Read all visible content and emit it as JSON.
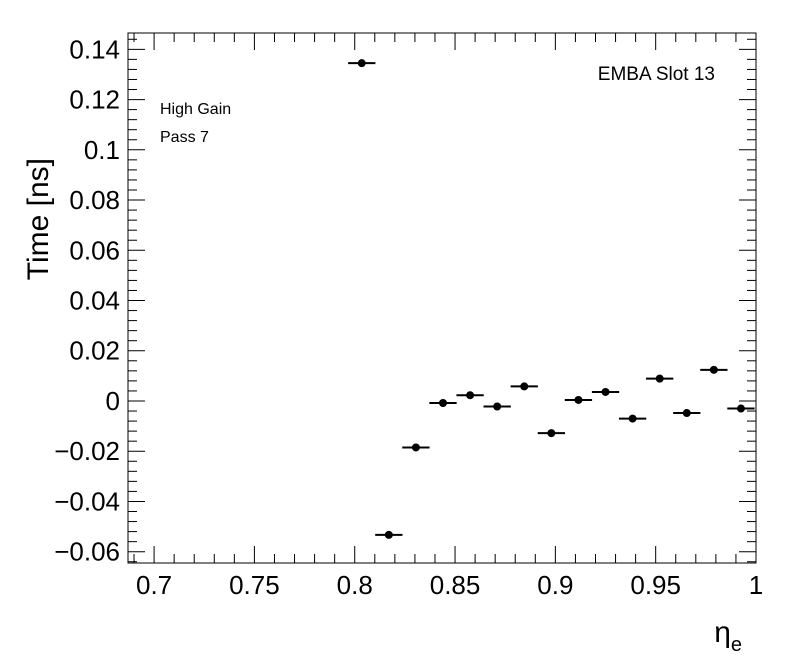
{
  "chart_data": {
    "type": "scatter",
    "title": "",
    "xlabel": "η",
    "xlabel_sub": "e",
    "ylabel": "Time [ns]",
    "xlim": [
      0.687,
      1.0
    ],
    "ylim": [
      -0.0645,
      0.1465
    ],
    "x_ticks": [
      0.7,
      0.75,
      0.8,
      0.85,
      0.9,
      0.95,
      1.0
    ],
    "x_tick_labels": [
      "0.7",
      "0.75",
      "0.8",
      "0.85",
      "0.9",
      "0.95",
      "1"
    ],
    "y_ticks": [
      -0.06,
      -0.04,
      -0.02,
      0,
      0.02,
      0.04,
      0.06,
      0.08,
      0.1,
      0.12,
      0.14
    ],
    "y_tick_labels": [
      "−0.06",
      "−0.04",
      "−0.02",
      "0",
      "0.02",
      "0.04",
      "0.06",
      "0.08",
      "0.1",
      "0.12",
      "0.14"
    ],
    "grid": false,
    "legend": "none",
    "marker_color": "#000000",
    "annotations": {
      "top_right": "EMBA Slot 13",
      "gain": "High Gain",
      "pass": "Pass 7"
    },
    "x_bin_halfwidth": 0.0068,
    "points": [
      {
        "x": 0.8035,
        "y": 0.1345,
        "yerr": 0.0012
      },
      {
        "x": 0.817,
        "y": -0.0533,
        "yerr": 0.0006
      },
      {
        "x": 0.8305,
        "y": -0.0185,
        "yerr": 0.0006
      },
      {
        "x": 0.844,
        "y": -0.0008,
        "yerr": 0.0006
      },
      {
        "x": 0.8575,
        "y": 0.0023,
        "yerr": 0.0006
      },
      {
        "x": 0.871,
        "y": -0.0022,
        "yerr": 0.0006
      },
      {
        "x": 0.8845,
        "y": 0.0058,
        "yerr": 0.0006
      },
      {
        "x": 0.898,
        "y": -0.0128,
        "yerr": 0.0006
      },
      {
        "x": 0.9115,
        "y": 0.0004,
        "yerr": 0.0006
      },
      {
        "x": 0.925,
        "y": 0.0036,
        "yerr": 0.0006
      },
      {
        "x": 0.9385,
        "y": -0.007,
        "yerr": 0.0006
      },
      {
        "x": 0.952,
        "y": 0.0089,
        "yerr": 0.0006
      },
      {
        "x": 0.9655,
        "y": -0.0048,
        "yerr": 0.0006
      },
      {
        "x": 0.979,
        "y": 0.0124,
        "yerr": 0.0006
      },
      {
        "x": 0.9925,
        "y": -0.003,
        "yerr": 0.0006
      }
    ]
  }
}
